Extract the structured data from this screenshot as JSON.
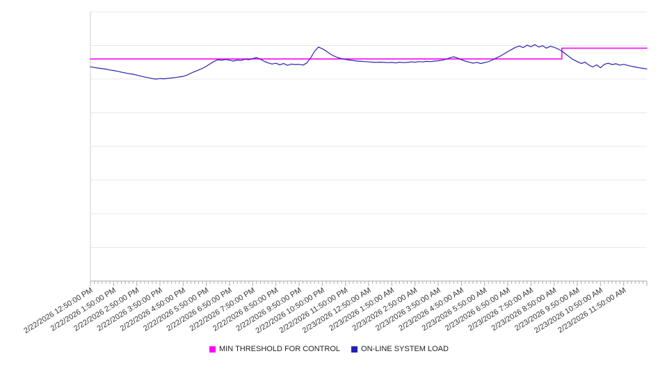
{
  "chart_data": {
    "type": "line",
    "title": "",
    "xlabel": "",
    "ylabel": "",
    "y_axis": {
      "min": 0,
      "max": 100,
      "gridline_step": 12.5,
      "tick_labels_visible": false
    },
    "x_minor_ticks_per_hour": 6,
    "x_labels": [
      "2/22/2026 12:50:00 PM",
      "2/22/2026 1:50:00 PM",
      "2/22/2026 2:50:00 PM",
      "2/22/2026 3:50:00 PM",
      "2/22/2026 4:50:00 PM",
      "2/22/2026 5:50:00 PM",
      "2/22/2026 6:50:00 PM",
      "2/22/2026 7:50:00 PM",
      "2/22/2026 8:50:00 PM",
      "2/22/2026 9:50:00 PM",
      "2/22/2026 10:50:00 PM",
      "2/22/2026 11:50:00 PM",
      "2/23/2026 12:50:00 AM",
      "2/23/2026 1:50:00 AM",
      "2/23/2026 2:50:00 AM",
      "2/23/2026 3:50:00 AM",
      "2/23/2026 4:50:00 AM",
      "2/23/2026 5:50:00 AM",
      "2/23/2026 6:50:00 AM",
      "2/23/2026 7:50:00 AM",
      "2/23/2026 8:50:00 AM",
      "2/23/2026 9:50:00 AM",
      "2/23/2026 10:50:00 AM",
      "2/23/2026 11:50:00 AM"
    ],
    "legend_position": "bottom-center",
    "series": [
      {
        "name": "MIN THRESHOLD FOR CONTROL",
        "color": "#ff00ff",
        "stroke_width": 1.6,
        "style": "step",
        "segments": [
          {
            "from_index": 0,
            "to_index": 122,
            "value": 82.5
          },
          {
            "from_index": 122,
            "to_index": 144,
            "value": 86.5
          }
        ]
      },
      {
        "name": "ON-LINE SYSTEM LOAD",
        "color": "#2222b2",
        "stroke_width": 1.2,
        "values": [
          79.6,
          79.3,
          79.1,
          78.9,
          78.7,
          78.4,
          78.2,
          77.9,
          77.6,
          77.3,
          77.0,
          76.8,
          76.5,
          76.1,
          75.8,
          75.5,
          75.2,
          75.0,
          75.2,
          75.1,
          75.3,
          75.4,
          75.6,
          75.8,
          76.0,
          76.5,
          77.2,
          77.8,
          78.4,
          79.0,
          79.8,
          80.7,
          81.6,
          82.2,
          82.0,
          82.3,
          82.0,
          81.7,
          82.1,
          81.9,
          82.4,
          82.2,
          82.6,
          83.0,
          82.4,
          81.6,
          81.0,
          80.6,
          80.9,
          80.3,
          80.8,
          80.1,
          80.6,
          80.4,
          80.5,
          80.2,
          81.0,
          82.9,
          85.3,
          86.9,
          86.3,
          85.4,
          84.4,
          83.6,
          83.0,
          82.6,
          82.3,
          82.1,
          81.9,
          81.7,
          81.6,
          81.5,
          81.4,
          81.3,
          81.2,
          81.3,
          81.2,
          81.1,
          81.2,
          81.0,
          81.3,
          81.1,
          81.2,
          81.4,
          81.3,
          81.5,
          81.4,
          81.6,
          81.5,
          81.7,
          81.8,
          82.0,
          82.4,
          82.9,
          83.3,
          82.8,
          82.2,
          81.7,
          81.3,
          80.9,
          81.2,
          80.8,
          81.1,
          81.5,
          82.1,
          82.8,
          83.5,
          84.3,
          85.2,
          86.0,
          86.8,
          87.3,
          86.7,
          87.6,
          87.0,
          87.8,
          86.9,
          87.4,
          86.5,
          87.2,
          86.8,
          86.2,
          85.4,
          84.3,
          83.2,
          82.2,
          81.5,
          80.8,
          81.3,
          80.2,
          79.5,
          80.3,
          79.2,
          80.5,
          80.9,
          80.4,
          80.7,
          80.2,
          80.5,
          80.1,
          79.8,
          79.5,
          79.2,
          79.0,
          78.8
        ]
      }
    ]
  }
}
